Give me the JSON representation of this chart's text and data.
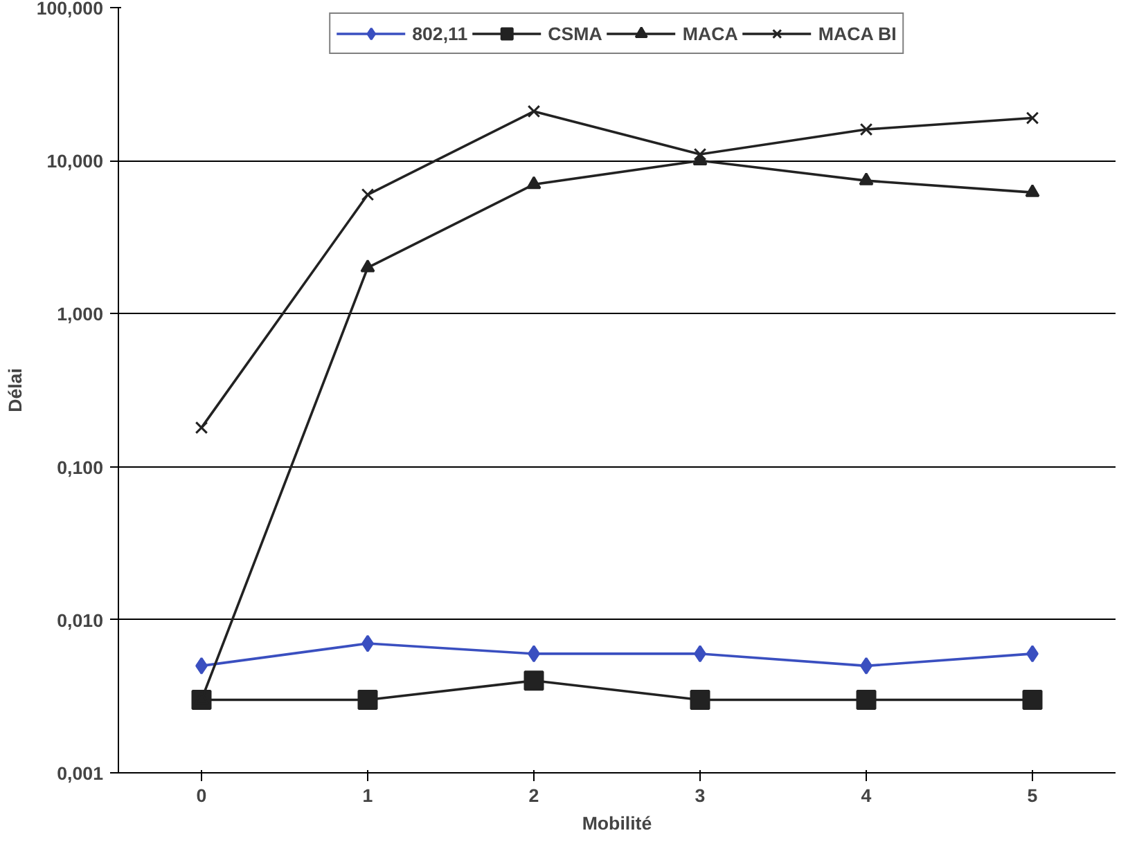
{
  "chart_data": {
    "type": "line",
    "xlabel": "Mobilité",
    "ylabel": "Délai",
    "categories": [
      "0",
      "1",
      "2",
      "3",
      "4",
      "5"
    ],
    "series": [
      {
        "name": "802,11",
        "color": "#3a4fc0",
        "marker": "diamond",
        "values": [
          0.005,
          0.007,
          0.006,
          0.006,
          0.005,
          0.006
        ]
      },
      {
        "name": "CSMA",
        "color": "#222222",
        "marker": "square",
        "values": [
          0.003,
          0.003,
          0.004,
          0.003,
          0.003,
          0.003
        ]
      },
      {
        "name": "MACA",
        "color": "#222222",
        "marker": "triangle",
        "values": [
          0.003,
          2.0,
          7,
          10,
          7.4,
          6.2
        ]
      },
      {
        "name": "MACA BI",
        "color": "#222222",
        "marker": "cross",
        "values": [
          0.18,
          6,
          21,
          11,
          16,
          19
        ]
      }
    ],
    "log": "y",
    "ylim": [
      0.001,
      100
    ],
    "yticks": [
      {
        "value": 0.001,
        "label": "0,001"
      },
      {
        "value": 0.01,
        "label": "0,010"
      },
      {
        "value": 0.1,
        "label": "0,100"
      },
      {
        "value": 1,
        "label": "1,000"
      },
      {
        "value": 10,
        "label": "10,000"
      },
      {
        "value": 100,
        "label": "100,000"
      }
    ],
    "grid": "y",
    "legend": "top",
    "line_style": "solid"
  }
}
